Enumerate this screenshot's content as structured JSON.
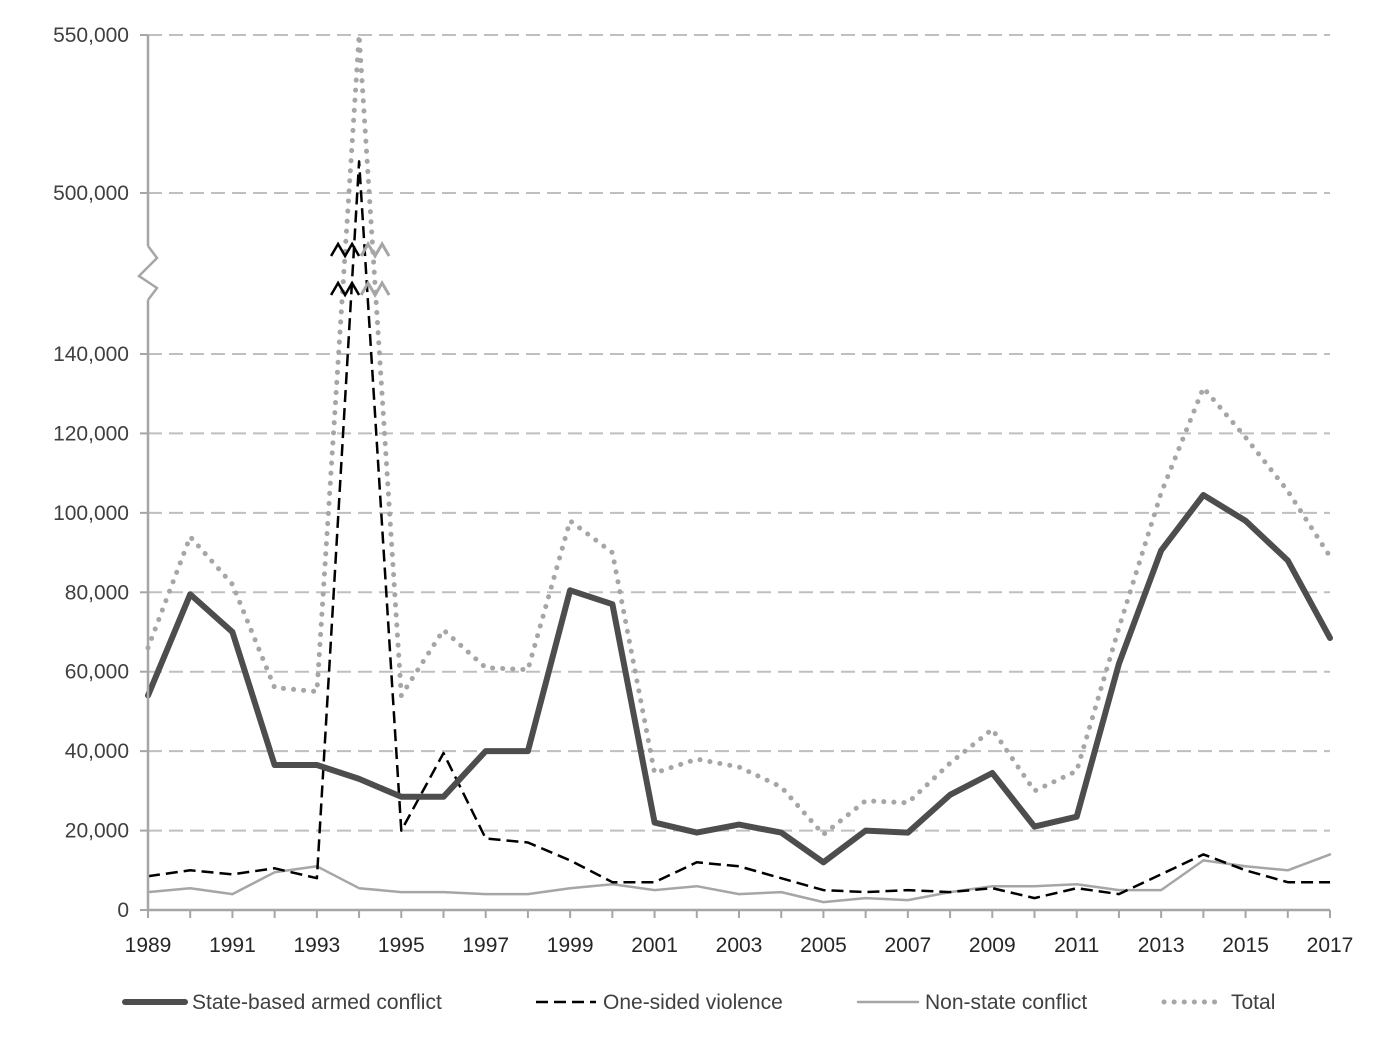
{
  "chart_data": {
    "type": "line",
    "title": "",
    "xlabel": "",
    "ylabel": "",
    "y_axis_break": {
      "lower_range": [
        0,
        150000
      ],
      "upper_range": [
        460000,
        550000
      ]
    },
    "y_ticks": [
      {
        "value": 0,
        "label": "0"
      },
      {
        "value": 20000,
        "label": "20,000"
      },
      {
        "value": 40000,
        "label": "40,000"
      },
      {
        "value": 60000,
        "label": "60,000"
      },
      {
        "value": 80000,
        "label": "80,000"
      },
      {
        "value": 100000,
        "label": "100,000"
      },
      {
        "value": 120000,
        "label": "120,000"
      },
      {
        "value": 140000,
        "label": "140,000"
      },
      {
        "value": 500000,
        "label": "500,000"
      },
      {
        "value": 550000,
        "label": "550,000"
      }
    ],
    "x_tick_labels": [
      "1989",
      "1991",
      "1993",
      "1995",
      "1997",
      "1999",
      "2001",
      "2003",
      "2005",
      "2007",
      "2009",
      "2011",
      "2013",
      "2015",
      "2017"
    ],
    "x": [
      1989,
      1990,
      1991,
      1992,
      1993,
      1994,
      1995,
      1996,
      1997,
      1998,
      1999,
      2000,
      2001,
      2002,
      2003,
      2004,
      2005,
      2006,
      2007,
      2008,
      2009,
      2010,
      2011,
      2012,
      2013,
      2014,
      2015,
      2016,
      2017
    ],
    "series": [
      {
        "name": "State-based armed conflict",
        "color": "#4d4d4d",
        "style": "solid-thick",
        "values": [
          54000,
          79500,
          70000,
          36500,
          36500,
          33000,
          28500,
          28500,
          40000,
          40000,
          80500,
          77000,
          22000,
          19500,
          21500,
          19500,
          12000,
          20000,
          19500,
          29000,
          34500,
          21000,
          23500,
          62000,
          90500,
          104500,
          98000,
          88000,
          68500
        ]
      },
      {
        "name": "One-sided violence",
        "color": "#000000",
        "style": "dashed",
        "values": [
          8500,
          10000,
          9000,
          10500,
          8000,
          510000,
          20000,
          39500,
          18000,
          17000,
          12500,
          7000,
          7000,
          12000,
          11000,
          8000,
          5000,
          4500,
          5000,
          4500,
          5500,
          3000,
          5500,
          4000,
          9000,
          14000,
          10000,
          7000,
          7000
        ]
      },
      {
        "name": "Non-state conflict",
        "color": "#a6a6a6",
        "style": "solid-thin",
        "values": [
          4500,
          5500,
          4000,
          9500,
          11000,
          5500,
          4500,
          4500,
          4000,
          4000,
          5500,
          6500,
          5000,
          6000,
          4000,
          4500,
          2000,
          3000,
          2500,
          4500,
          6000,
          6000,
          6500,
          5000,
          5000,
          12500,
          11000,
          10000,
          14000
        ]
      },
      {
        "name": "Total",
        "color": "#a6a6a6",
        "style": "dotted",
        "values": [
          66000,
          94000,
          82000,
          56000,
          55000,
          550000,
          54000,
          70500,
          61000,
          60500,
          98000,
          90000,
          34500,
          38000,
          36000,
          31000,
          19000,
          27500,
          27000,
          37000,
          45500,
          30000,
          35000,
          71000,
          105000,
          131500,
          119000,
          105500,
          89000
        ]
      }
    ],
    "legend_position": "bottom",
    "grid": {
      "horizontal": true,
      "vertical": false
    }
  }
}
